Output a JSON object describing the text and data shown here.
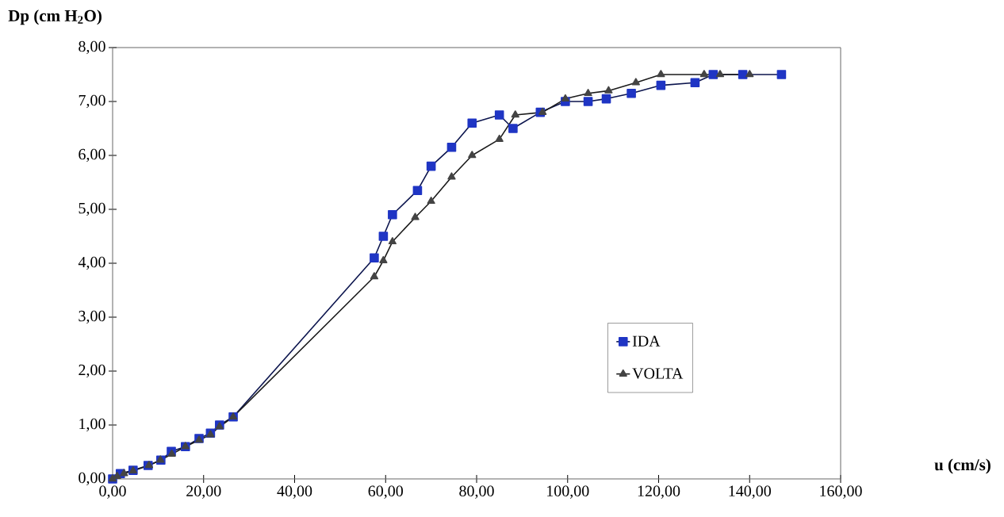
{
  "chart_data": {
    "type": "line",
    "xlabel": "u (cm/s)",
    "ylabel": "Dp (cm H$_{2}$O)",
    "xlim": [
      0,
      160
    ],
    "ylim": [
      0,
      8
    ],
    "xticks": [
      {
        "value": 0,
        "label": "0,00"
      },
      {
        "value": 20,
        "label": "20,00"
      },
      {
        "value": 40,
        "label": "40,00"
      },
      {
        "value": 60,
        "label": "60,00"
      },
      {
        "value": 80,
        "label": "80,00"
      },
      {
        "value": 100,
        "label": "100,00"
      },
      {
        "value": 120,
        "label": "120,00"
      },
      {
        "value": 140,
        "label": "140,00"
      },
      {
        "value": 160,
        "label": "160,00"
      }
    ],
    "yticks": [
      {
        "value": 0,
        "label": "0,00"
      },
      {
        "value": 1,
        "label": "1,00"
      },
      {
        "value": 2,
        "label": "2,00"
      },
      {
        "value": 3,
        "label": "3,00"
      },
      {
        "value": 4,
        "label": "4,00"
      },
      {
        "value": 5,
        "label": "5,00"
      },
      {
        "value": 6,
        "label": "6,00"
      },
      {
        "value": 7,
        "label": "7,00"
      },
      {
        "value": 8,
        "label": "8,00"
      }
    ],
    "legend": "right",
    "grid": false,
    "series": [
      {
        "name": "IDA",
        "color": "#1f35c4",
        "marker": "square",
        "x": [
          0,
          1.7,
          4.5,
          7.8,
          10.6,
          12.9,
          16,
          19,
          21.5,
          23.5,
          26.5,
          57.5,
          59.5,
          61.5,
          67,
          70,
          74.5,
          79,
          85,
          88,
          94,
          99.5,
          104.5,
          108.5,
          114,
          120.5,
          128,
          132,
          138.5,
          147
        ],
        "values": [
          0,
          0.1,
          0.16,
          0.25,
          0.35,
          0.51,
          0.6,
          0.75,
          0.85,
          1.0,
          1.15,
          4.1,
          4.5,
          4.9,
          5.35,
          5.8,
          6.15,
          6.6,
          6.75,
          6.5,
          6.8,
          7.0,
          7.0,
          7.05,
          7.15,
          7.3,
          7.35,
          7.5,
          7.5,
          7.5
        ]
      },
      {
        "name": "VOLTA",
        "color": "#444444",
        "marker": "triangle",
        "x": [
          0,
          1,
          2.5,
          4.5,
          8,
          10.5,
          13,
          16,
          19,
          21.5,
          23.5,
          26.5,
          57.5,
          59.5,
          61.5,
          66.5,
          70,
          74.5,
          79,
          85,
          88.5,
          94.5,
          99.5,
          104.5,
          109,
          115,
          120.5,
          130,
          133.5,
          140
        ],
        "values": [
          0,
          0.05,
          0.1,
          0.15,
          0.25,
          0.35,
          0.46,
          0.6,
          0.72,
          0.82,
          0.97,
          1.15,
          3.75,
          4.05,
          4.4,
          4.85,
          5.15,
          5.6,
          6.0,
          6.3,
          6.75,
          6.8,
          7.05,
          7.15,
          7.2,
          7.35,
          7.5,
          7.5,
          7.5,
          7.5
        ]
      }
    ]
  }
}
